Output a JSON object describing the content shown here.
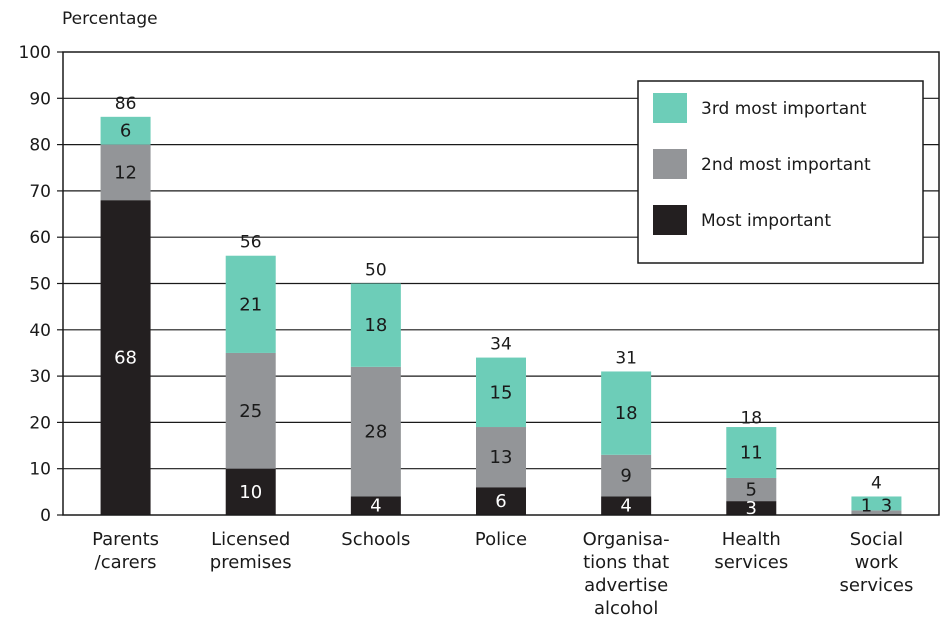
{
  "chart_data": {
    "type": "bar",
    "stacked": true,
    "ylabel": "Percentage",
    "ylim": [
      0,
      100
    ],
    "yticks": [
      0,
      10,
      20,
      30,
      40,
      50,
      60,
      70,
      80,
      90,
      100
    ],
    "grid": true,
    "legend_position": "top-right",
    "categories": [
      [
        "Parents",
        "/carers"
      ],
      [
        "Licensed",
        "premises"
      ],
      [
        "Schools"
      ],
      [
        "Police"
      ],
      [
        "Organisa-",
        "tions that",
        "advertise",
        "alcohol"
      ],
      [
        "Health",
        "services"
      ],
      [
        "Social",
        "work",
        "services"
      ]
    ],
    "series": [
      {
        "name": "Most important",
        "color": "#231f20",
        "label_color": "#ffffff",
        "values": [
          68,
          10,
          4,
          6,
          4,
          3,
          null
        ],
        "labels": [
          "68",
          "10",
          "4",
          "6",
          "4",
          "3",
          ""
        ]
      },
      {
        "name": "2nd most important",
        "color": "#939598",
        "label_color": "#1a1a1a",
        "values": [
          12,
          25,
          28,
          13,
          9,
          5,
          1
        ],
        "labels": [
          "12",
          "25",
          "28",
          "13",
          "9",
          "5",
          "1"
        ]
      },
      {
        "name": "3rd most important",
        "color": "#6dcdb8",
        "label_color": "#1a1a1a",
        "values": [
          6,
          21,
          18,
          15,
          18,
          11,
          3
        ],
        "labels": [
          "6",
          "21",
          "18",
          "15",
          "18",
          "11",
          "3"
        ]
      }
    ],
    "totals": [
      86,
      56,
      50,
      34,
      31,
      18,
      4
    ],
    "legend_order": [
      "3rd most important",
      "2nd most important",
      "Most important"
    ]
  }
}
